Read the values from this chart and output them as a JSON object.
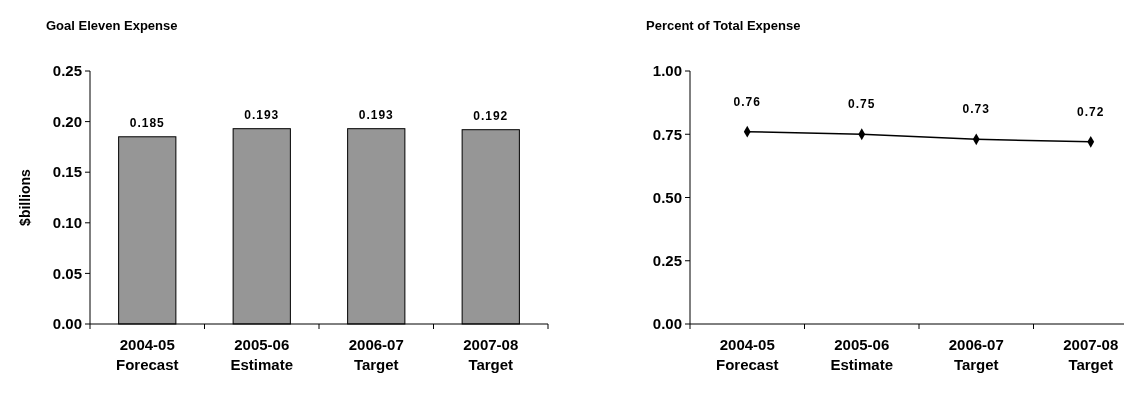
{
  "chart_data": [
    {
      "type": "bar",
      "title": "Goal Eleven Expense",
      "ylabel": "$billions",
      "categories": [
        "2004-05 Forecast",
        "2005-06 Estimate",
        "2006-07 Target",
        "2007-08 Target"
      ],
      "values": [
        0.185,
        0.193,
        0.193,
        0.192
      ],
      "color": "#969696",
      "ylim": [
        0,
        0.25
      ],
      "yticks": [
        {
          "value": 0,
          "label": "0.00"
        },
        {
          "value": 0.05,
          "label": "0.05"
        },
        {
          "value": 0.1,
          "label": "0.10"
        },
        {
          "value": 0.15,
          "label": "0.15"
        },
        {
          "value": 0.2,
          "label": "0.20"
        },
        {
          "value": 0.25,
          "label": "0.25"
        }
      ],
      "data_labels": true,
      "grid": false
    },
    {
      "type": "line",
      "title": "Percent of Total Expense",
      "categories": [
        "2004-05 Forecast",
        "2005-06 Estimate",
        "2006-07 Target",
        "2007-08 Target"
      ],
      "values": [
        0.76,
        0.75,
        0.73,
        0.72
      ],
      "color": "#000000",
      "ylim": [
        0,
        1
      ],
      "yticks": [
        {
          "value": 0,
          "label": "0.00"
        },
        {
          "value": 0.25,
          "label": "0.25"
        },
        {
          "value": 0.5,
          "label": "0.50"
        },
        {
          "value": 0.75,
          "label": "0.75"
        },
        {
          "value": 1,
          "label": "1.00"
        }
      ],
      "marker": "diamond",
      "line_style": "solid",
      "data_labels": true,
      "grid": false
    }
  ]
}
